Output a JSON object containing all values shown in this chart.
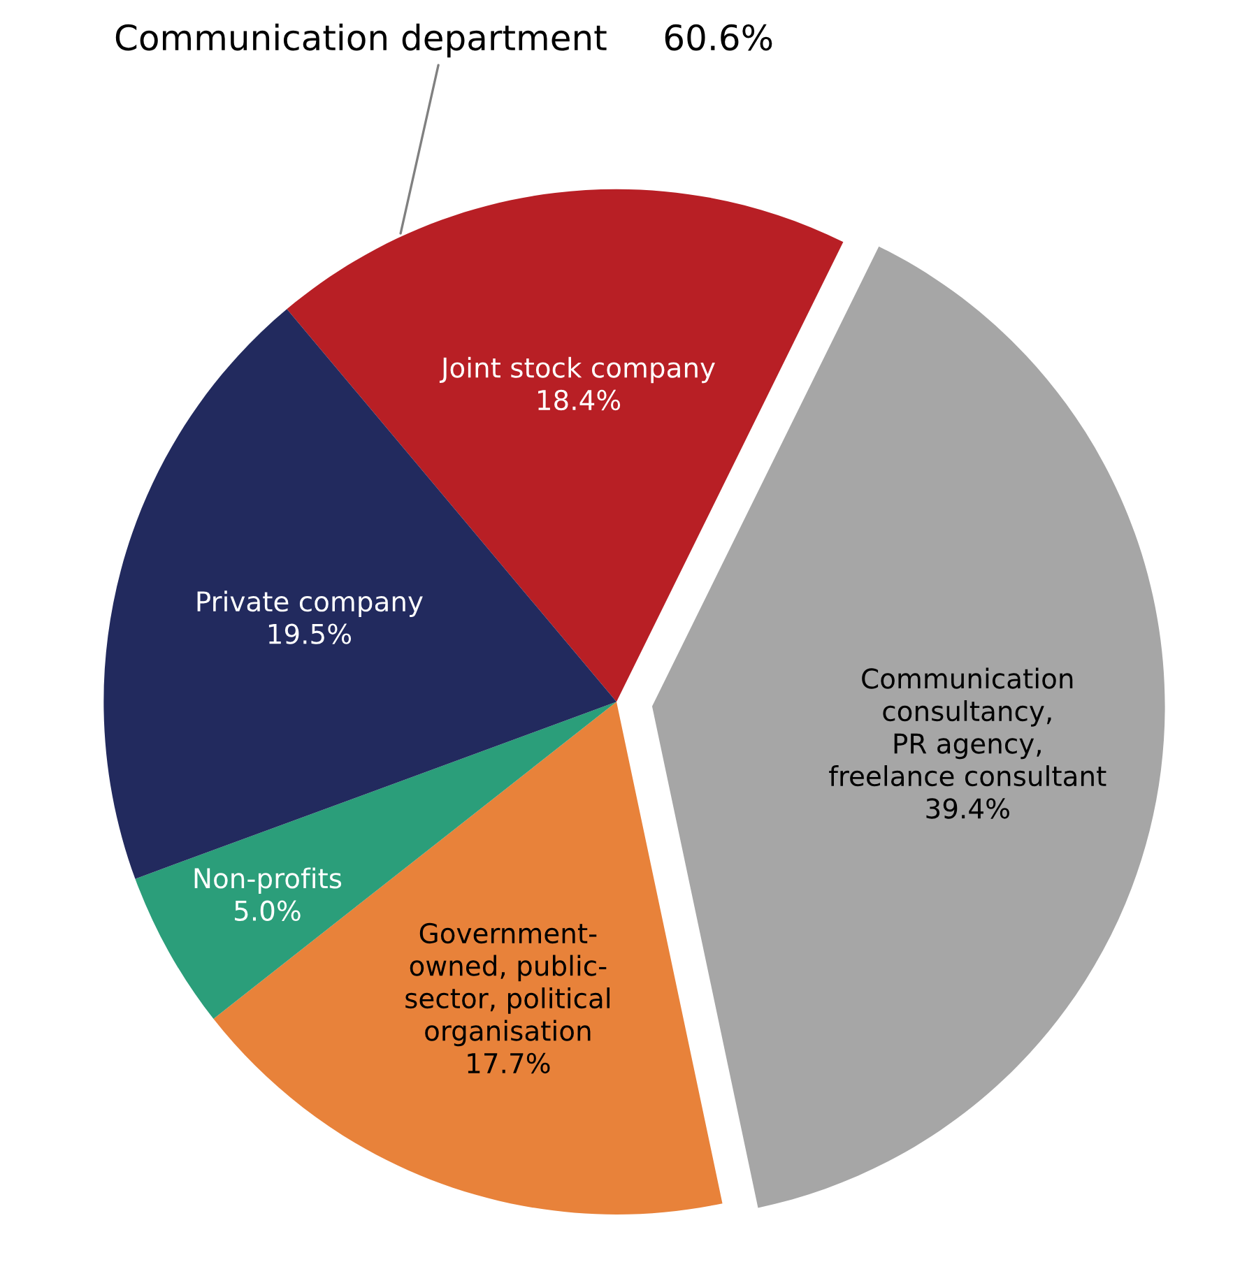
{
  "chart_data": {
    "type": "pie",
    "categories": [
      "Joint stock company",
      "Communication\nconsultancy,\nPR agency,\nfreelance consultant",
      "Government-\nowned, public-\nsector, political\norganisation",
      "Non-profits",
      "Private company"
    ],
    "values": [
      18.4,
      39.4,
      17.7,
      5.0,
      19.5
    ],
    "value_labels": [
      "18.4%",
      "39.4%",
      "17.7%",
      "5.0%",
      "19.5%"
    ],
    "colors": [
      "#b81f25",
      "#a6a6a6",
      "#e8823a",
      "#2b9e7a",
      "#222a5e"
    ],
    "annotations": [
      "Communication department     60.6%"
    ]
  }
}
